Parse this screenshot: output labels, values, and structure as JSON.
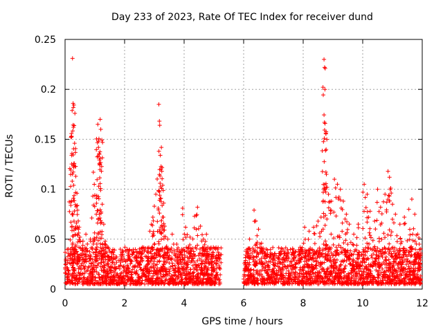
{
  "chart_data": {
    "type": "scatter",
    "title": "Day 233 of 2023, Rate Of TEC Index for receiver dund",
    "xlabel": "GPS time / hours",
    "ylabel": "ROTI / TECUs",
    "xlim": [
      0,
      12
    ],
    "ylim": [
      0,
      0.25
    ],
    "xticks": [
      0,
      2,
      4,
      6,
      8,
      10,
      12
    ],
    "xtick_labels": [
      "0",
      "2",
      "4",
      "6",
      "8",
      "10",
      "12"
    ],
    "yticks": [
      0,
      0.05,
      0.1,
      0.15,
      0.2,
      0.25
    ],
    "ytick_labels": [
      "0",
      "0.05",
      "0.1",
      "0.15",
      "0.2",
      "0.25"
    ],
    "grid": true,
    "marker": "+",
    "color": "#ff0000",
    "data_gap_hours": [
      5.25,
      6.0
    ],
    "series": [
      {
        "name": "ROTI",
        "points": [
          [
            0.25,
            0.231
          ],
          [
            0.27,
            0.186
          ],
          [
            0.33,
            0.176
          ],
          [
            0.2,
            0.152
          ],
          [
            0.22,
            0.134
          ],
          [
            0.32,
            0.146
          ],
          [
            0.24,
            0.108
          ],
          [
            0.36,
            0.113
          ],
          [
            0.4,
            0.096
          ],
          [
            0.42,
            0.079
          ],
          [
            0.3,
            0.068
          ],
          [
            0.45,
            0.06
          ],
          [
            0.5,
            0.052
          ],
          [
            0.6,
            0.048
          ],
          [
            0.7,
            0.055
          ],
          [
            0.85,
            0.05
          ],
          [
            0.95,
            0.117
          ],
          [
            1.0,
            0.094
          ],
          [
            1.05,
            0.075
          ],
          [
            1.1,
            0.165
          ],
          [
            1.12,
            0.148
          ],
          [
            1.15,
            0.135
          ],
          [
            1.18,
            0.17
          ],
          [
            1.2,
            0.16
          ],
          [
            1.22,
            0.118
          ],
          [
            1.13,
            0.103
          ],
          [
            1.25,
            0.085
          ],
          [
            1.3,
            0.065
          ],
          [
            1.35,
            0.048
          ],
          [
            1.5,
            0.038
          ],
          [
            1.7,
            0.032
          ],
          [
            1.9,
            0.03
          ],
          [
            2.1,
            0.029
          ],
          [
            2.4,
            0.034
          ],
          [
            2.6,
            0.042
          ],
          [
            2.85,
            0.058
          ],
          [
            2.95,
            0.072
          ],
          [
            3.0,
            0.083
          ],
          [
            3.05,
            0.095
          ],
          [
            3.15,
            0.185
          ],
          [
            3.18,
            0.164
          ],
          [
            3.2,
            0.134
          ],
          [
            3.25,
            0.118
          ],
          [
            3.28,
            0.104
          ],
          [
            3.22,
            0.091
          ],
          [
            3.3,
            0.072
          ],
          [
            3.35,
            0.063
          ],
          [
            3.45,
            0.05
          ],
          [
            3.6,
            0.055
          ],
          [
            3.75,
            0.045
          ],
          [
            3.95,
            0.081
          ],
          [
            4.05,
            0.062
          ],
          [
            4.2,
            0.052
          ],
          [
            4.35,
            0.073
          ],
          [
            4.45,
            0.082
          ],
          [
            4.55,
            0.063
          ],
          [
            4.65,
            0.05
          ],
          [
            4.75,
            0.055
          ],
          [
            4.9,
            0.04
          ],
          [
            5.05,
            0.032
          ],
          [
            5.2,
            0.03
          ],
          [
            6.2,
            0.05
          ],
          [
            6.35,
            0.079
          ],
          [
            6.4,
            0.068
          ],
          [
            6.5,
            0.06
          ],
          [
            6.6,
            0.046
          ],
          [
            6.8,
            0.035
          ],
          [
            7.0,
            0.03
          ],
          [
            7.2,
            0.03
          ],
          [
            7.5,
            0.032
          ],
          [
            7.7,
            0.036
          ],
          [
            7.9,
            0.042
          ],
          [
            8.05,
            0.062
          ],
          [
            8.2,
            0.058
          ],
          [
            8.35,
            0.062
          ],
          [
            8.5,
            0.068
          ],
          [
            8.6,
            0.072
          ],
          [
            8.7,
            0.23
          ],
          [
            8.72,
            0.222
          ],
          [
            8.74,
            0.221
          ],
          [
            8.78,
            0.115
          ],
          [
            8.85,
            0.095
          ],
          [
            8.95,
            0.088
          ],
          [
            9.05,
            0.11
          ],
          [
            9.15,
            0.105
          ],
          [
            9.25,
            0.1
          ],
          [
            9.35,
            0.088
          ],
          [
            9.45,
            0.075
          ],
          [
            9.55,
            0.065
          ],
          [
            9.7,
            0.055
          ],
          [
            9.85,
            0.065
          ],
          [
            10.05,
            0.105
          ],
          [
            10.15,
            0.095
          ],
          [
            10.25,
            0.078
          ],
          [
            10.4,
            0.068
          ],
          [
            10.5,
            0.1
          ],
          [
            10.6,
            0.082
          ],
          [
            10.75,
            0.095
          ],
          [
            10.85,
            0.118
          ],
          [
            10.9,
            0.112
          ],
          [
            11.0,
            0.085
          ],
          [
            11.1,
            0.075
          ],
          [
            11.25,
            0.065
          ],
          [
            11.4,
            0.072
          ],
          [
            11.55,
            0.08
          ],
          [
            11.65,
            0.09
          ],
          [
            11.75,
            0.075
          ],
          [
            11.85,
            0.055
          ],
          [
            11.9,
            0.045
          ]
        ]
      }
    ],
    "baseline_band": {
      "segments": [
        [
          0.0,
          5.25
        ],
        [
          6.0,
          11.95
        ]
      ],
      "typical_range": [
        0.005,
        0.03
      ]
    }
  }
}
